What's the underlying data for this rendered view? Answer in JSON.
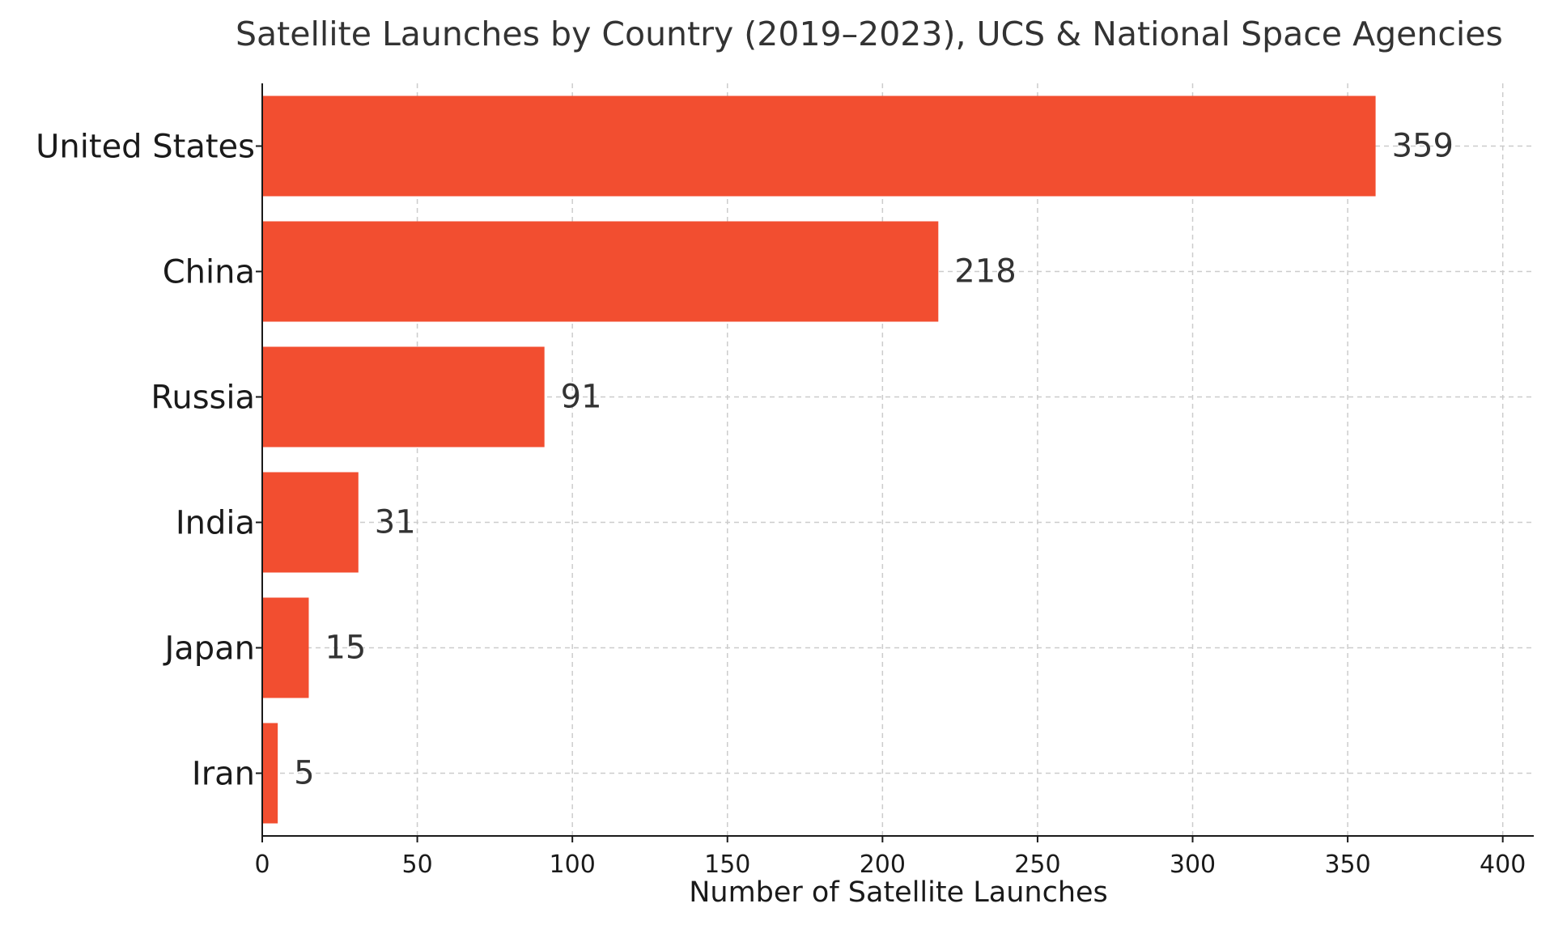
{
  "chart_data": {
    "type": "bar",
    "orientation": "horizontal",
    "title": "Satellite Launches by Country (2019–2023), UCS & National Space Agencies",
    "xlabel": "Number of Satellite Launches",
    "ylabel": "",
    "categories": [
      "United States",
      "China",
      "Russia",
      "India",
      "Japan",
      "Iran"
    ],
    "values": [
      359,
      218,
      91,
      31,
      15,
      5
    ],
    "data_labels": [
      "359",
      "218",
      "91",
      "31",
      "15",
      "5"
    ],
    "xlim": [
      0,
      410
    ],
    "xticks": [
      0,
      50,
      100,
      150,
      200,
      250,
      300,
      350,
      400
    ],
    "grid": true,
    "bar_color": "#f24e30"
  }
}
